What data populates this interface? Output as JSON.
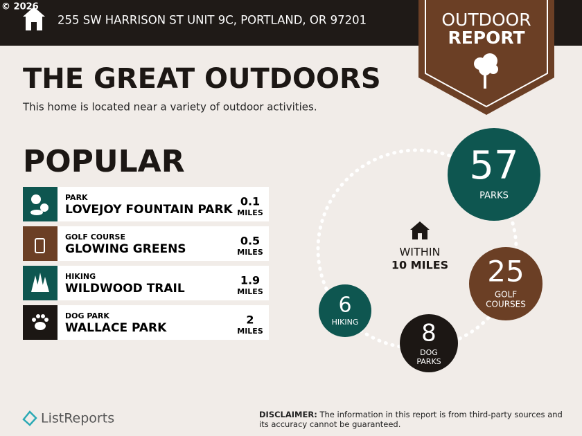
{
  "watermark": "© 2026",
  "header": {
    "address": "255 SW HARRISON ST UNIT 9C, PORTLAND, OR 97201"
  },
  "badge": {
    "line1": "OUTDOOR",
    "line2": "REPORT"
  },
  "title": "THE GREAT OUTDOORS",
  "subtitle": "This home is located near a variety of outdoor activities.",
  "popular": {
    "heading": "POPULAR",
    "items": [
      {
        "category": "PARK",
        "name": "LOVEJOY FOUNTAIN PARK",
        "distance": 0.1,
        "unit": "MILES"
      },
      {
        "category": "GOLF COURSE",
        "name": "GLOWING GREENS",
        "distance": 0.5,
        "unit": "MILES"
      },
      {
        "category": "HIKING",
        "name": "WILDWOOD TRAIL",
        "distance": 1.9,
        "unit": "MILES"
      },
      {
        "category": "DOG PARK",
        "name": "WALLACE PARK",
        "distance": 2,
        "unit": "MILES"
      }
    ]
  },
  "nearby": {
    "within": "WITHIN",
    "radius": "10 MILES",
    "counts": [
      {
        "count": 57,
        "label": [
          "PARKS"
        ]
      },
      {
        "count": 25,
        "label": [
          "GOLF",
          "COURSES"
        ]
      },
      {
        "count": 6,
        "label": [
          "HIKING"
        ]
      },
      {
        "count": 8,
        "label": [
          "DOG",
          "PARKS"
        ]
      }
    ]
  },
  "footer": {
    "brand": "ListReports",
    "disclaimer_label": "DISCLAIMER:",
    "disclaimer": "The information in this report is from third-party sources and its accuracy cannot be guaranteed."
  }
}
